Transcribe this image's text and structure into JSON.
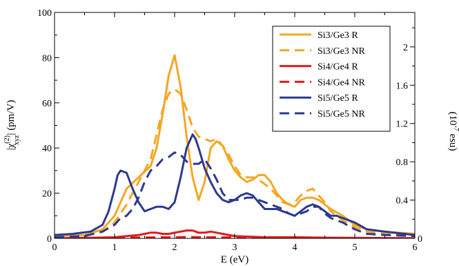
{
  "chart_data": {
    "type": "line",
    "xlabel": "E (eV)",
    "ylabel_parts": {
      "prefix": "|χ",
      "sup": "(2)",
      "sub": "xyz",
      "suffix": "| (pm/V)"
    },
    "y2label_parts": {
      "prefix": "(10",
      "sup": "-7",
      "suffix": " esu)"
    },
    "xlim": [
      0,
      6
    ],
    "ylim": [
      0,
      100
    ],
    "y2lim": [
      0,
      2.36
    ],
    "xticks": [
      0,
      1,
      2,
      3,
      4,
      5,
      6
    ],
    "yticks": [
      0,
      20,
      40,
      60,
      80,
      100
    ],
    "y2ticks": [
      0,
      0.4,
      0.8,
      1.2,
      1.6,
      2
    ],
    "xtick_labels": [
      "0",
      "1",
      "2",
      "3",
      "4",
      "5",
      "6"
    ],
    "ytick_labels": [
      "0",
      "20",
      "40",
      "60",
      "80",
      "100"
    ],
    "y2tick_labels": [
      "0",
      "0.4",
      "0.8",
      "1.2",
      "1.6",
      "2"
    ],
    "legend_position": "top-right",
    "series": [
      {
        "name": "Si3/Ge3 R",
        "color": "#f5a623",
        "dash": false,
        "x": [
          0,
          0.5,
          0.8,
          1.0,
          1.2,
          1.4,
          1.6,
          1.7,
          1.8,
          1.9,
          2.0,
          2.1,
          2.2,
          2.3,
          2.4,
          2.5,
          2.6,
          2.7,
          2.8,
          2.9,
          3.0,
          3.1,
          3.2,
          3.3,
          3.4,
          3.5,
          3.6,
          3.7,
          3.8,
          3.9,
          4.0,
          4.1,
          4.2,
          4.3,
          4.4,
          4.5,
          4.6,
          4.8,
          5.0,
          5.2,
          5.5,
          6.0
        ],
        "y": [
          1,
          1.5,
          4,
          10,
          22,
          27,
          32,
          40,
          55,
          72,
          81,
          67,
          45,
          27,
          17,
          25,
          40,
          43,
          41,
          35,
          30,
          27,
          25,
          26,
          28,
          28,
          25,
          20,
          17,
          15,
          14,
          17,
          18,
          18,
          17,
          15,
          13,
          10,
          6,
          4,
          3,
          2
        ]
      },
      {
        "name": "Si3/Ge3 NR",
        "color": "#f5a623",
        "dash": true,
        "x": [
          0,
          0.5,
          0.8,
          1.0,
          1.2,
          1.4,
          1.6,
          1.7,
          1.8,
          1.9,
          2.0,
          2.1,
          2.2,
          2.3,
          2.4,
          2.5,
          2.6,
          2.7,
          2.8,
          2.9,
          3.0,
          3.1,
          3.2,
          3.3,
          3.4,
          3.5,
          3.6,
          3.7,
          3.8,
          3.9,
          4.0,
          4.1,
          4.2,
          4.3,
          4.4,
          4.5,
          4.6,
          4.8,
          5.0,
          5.2,
          5.5,
          6.0
        ],
        "y": [
          1,
          1.5,
          3,
          7,
          15,
          25,
          35,
          46,
          57,
          64,
          66,
          64,
          57,
          49,
          45,
          44,
          43,
          44,
          41,
          37,
          32,
          28,
          27,
          27,
          26,
          24,
          22,
          19,
          16,
          15,
          16,
          19,
          21,
          22,
          19,
          16,
          12,
          8,
          5,
          3,
          2,
          1
        ]
      },
      {
        "name": "Si4/Ge4 R",
        "color": "#e21b1b",
        "dash": false,
        "x": [
          0,
          0.5,
          1.0,
          1.2,
          1.4,
          1.5,
          1.6,
          1.7,
          1.8,
          1.9,
          2.0,
          2.1,
          2.2,
          2.3,
          2.4,
          2.5,
          2.6,
          2.7,
          2.8,
          2.9,
          3.0,
          3.2,
          3.5,
          4.0,
          4.5,
          5.0,
          6.0
        ],
        "y": [
          0,
          0.2,
          0.5,
          1,
          1.5,
          2,
          2.5,
          2.5,
          2,
          2,
          2.5,
          3,
          3.5,
          3.5,
          2.5,
          2.5,
          3,
          2.5,
          2,
          1.5,
          1,
          0.8,
          0.5,
          0.5,
          0.3,
          0.2,
          0.1
        ]
      },
      {
        "name": "Si4/Ge4 NR",
        "color": "#e21b1b",
        "dash": true,
        "x": [
          0,
          1.0,
          1.5,
          2.0,
          2.2,
          2.5,
          3.0,
          3.5,
          4.0,
          4.5,
          5.0,
          6.0
        ],
        "y": [
          0,
          0.2,
          0.4,
          0.5,
          0.6,
          0.5,
          0.4,
          0.3,
          0.2,
          0.2,
          0.1,
          0
        ]
      },
      {
        "name": "Si5/Ge5 R",
        "color": "#2b3990",
        "dash": false,
        "x": [
          0,
          0.3,
          0.6,
          0.8,
          0.9,
          1.0,
          1.05,
          1.1,
          1.2,
          1.3,
          1.4,
          1.5,
          1.6,
          1.7,
          1.8,
          1.9,
          2.0,
          2.1,
          2.2,
          2.3,
          2.35,
          2.4,
          2.5,
          2.6,
          2.7,
          2.8,
          2.9,
          3.0,
          3.1,
          3.2,
          3.3,
          3.4,
          3.5,
          3.6,
          3.7,
          3.8,
          3.9,
          4.0,
          4.1,
          4.2,
          4.3,
          4.4,
          4.5,
          4.6,
          4.7,
          4.8,
          4.9,
          5.0,
          5.2,
          5.5,
          6.0
        ],
        "y": [
          1.5,
          2,
          3,
          6,
          12,
          22,
          28,
          30,
          29,
          22,
          16,
          12,
          13,
          14,
          14,
          13,
          16,
          27,
          40,
          46,
          44,
          40,
          31,
          25,
          20,
          17,
          16,
          17,
          19,
          20,
          19,
          16,
          13,
          13,
          13,
          12,
          11,
          10,
          12,
          14,
          15,
          14,
          12,
          10,
          10,
          9,
          8,
          7,
          4,
          3,
          1.5
        ]
      },
      {
        "name": "Si5/Ge5 NR",
        "color": "#2b3990",
        "dash": true,
        "x": [
          0,
          0.5,
          0.8,
          1.0,
          1.1,
          1.2,
          1.3,
          1.4,
          1.5,
          1.6,
          1.7,
          1.8,
          1.9,
          2.0,
          2.1,
          2.2,
          2.3,
          2.4,
          2.5,
          2.6,
          2.7,
          2.8,
          2.9,
          3.0,
          3.1,
          3.2,
          3.3,
          3.4,
          3.5,
          3.6,
          3.7,
          3.8,
          3.9,
          4.0,
          4.1,
          4.2,
          4.3,
          4.4,
          4.5,
          4.6,
          4.8,
          5.0,
          5.2,
          5.5,
          6.0
        ],
        "y": [
          0.5,
          1,
          3,
          6,
          9,
          10,
          13,
          18,
          25,
          30,
          32,
          35,
          36,
          38,
          37,
          34,
          33,
          33,
          35,
          31,
          26,
          20,
          17,
          17,
          17,
          18,
          18,
          17,
          16,
          15,
          14,
          13,
          11,
          10,
          11,
          12,
          14,
          14,
          11,
          9,
          7,
          4,
          2,
          1.5,
          1
        ]
      }
    ]
  }
}
